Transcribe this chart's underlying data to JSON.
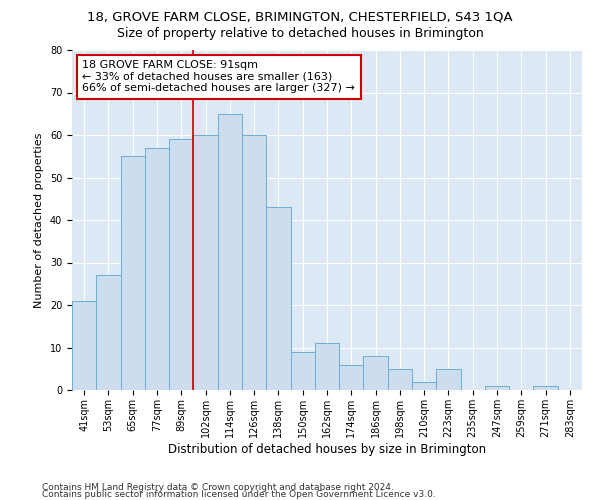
{
  "title1": "18, GROVE FARM CLOSE, BRIMINGTON, CHESTERFIELD, S43 1QA",
  "title2": "Size of property relative to detached houses in Brimington",
  "xlabel": "Distribution of detached houses by size in Brimington",
  "ylabel": "Number of detached properties",
  "categories": [
    "41sqm",
    "53sqm",
    "65sqm",
    "77sqm",
    "89sqm",
    "102sqm",
    "114sqm",
    "126sqm",
    "138sqm",
    "150sqm",
    "162sqm",
    "174sqm",
    "186sqm",
    "198sqm",
    "210sqm",
    "223sqm",
    "235sqm",
    "247sqm",
    "259sqm",
    "271sqm",
    "283sqm"
  ],
  "values": [
    21,
    27,
    55,
    57,
    59,
    60,
    65,
    60,
    43,
    9,
    11,
    6,
    8,
    5,
    2,
    5,
    0,
    1,
    0,
    1,
    0
  ],
  "bar_color": "#ccdded",
  "bar_edge_color": "#6aaed6",
  "annotation_text": "18 GROVE FARM CLOSE: 91sqm\n← 33% of detached houses are smaller (163)\n66% of semi-detached houses are larger (327) →",
  "annotation_box_color": "#ffffff",
  "annotation_box_edge": "#cc0000",
  "ylim": [
    0,
    80
  ],
  "yticks": [
    0,
    10,
    20,
    30,
    40,
    50,
    60,
    70,
    80
  ],
  "vline_color": "#cc0000",
  "vline_x": 4.5,
  "footer1": "Contains HM Land Registry data © Crown copyright and database right 2024.",
  "footer2": "Contains public sector information licensed under the Open Government Licence v3.0.",
  "plot_bg_color": "#dce9f5",
  "title1_fontsize": 9.5,
  "title2_fontsize": 9,
  "xlabel_fontsize": 8.5,
  "ylabel_fontsize": 8,
  "tick_fontsize": 7,
  "annotation_fontsize": 8,
  "footer_fontsize": 6.5
}
